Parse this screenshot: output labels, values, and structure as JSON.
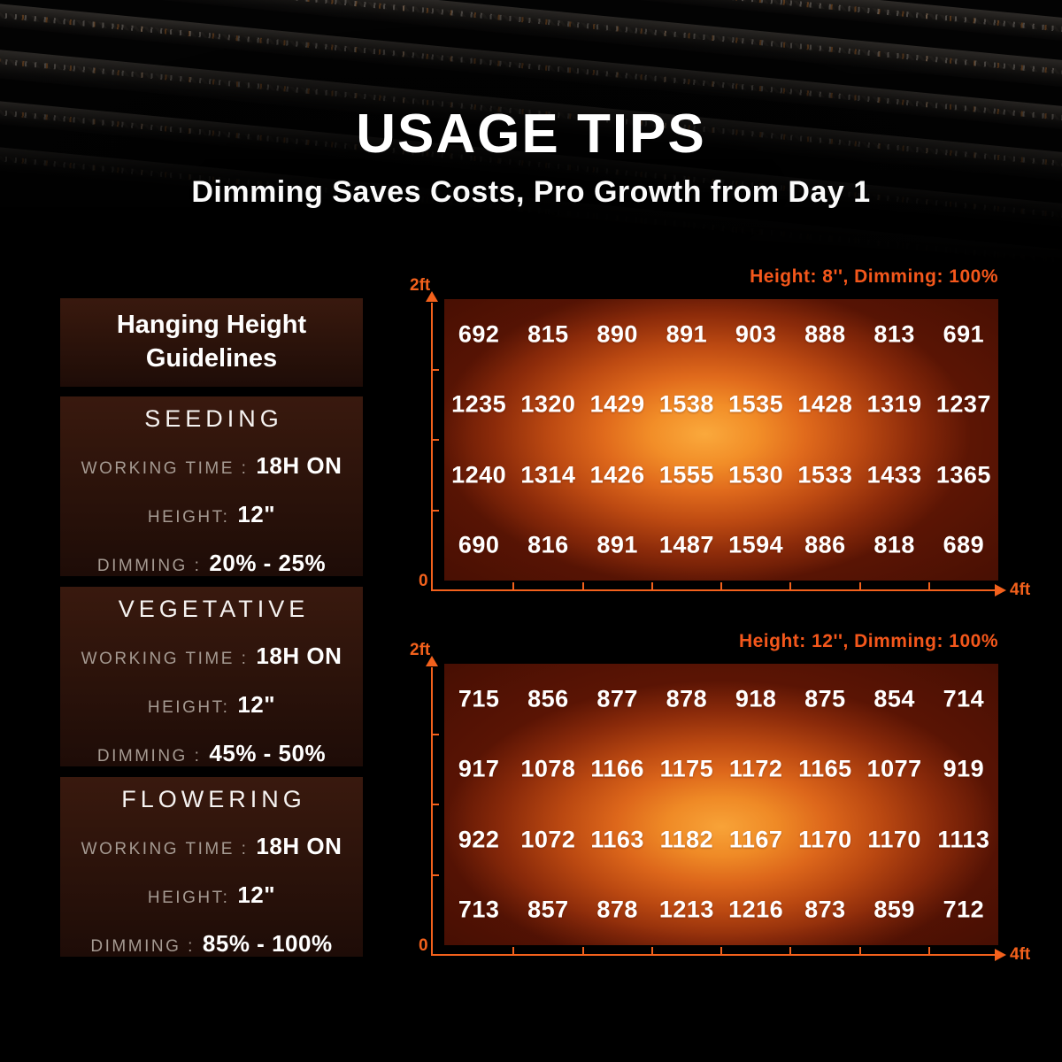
{
  "hero": {
    "title": "USAGE TIPS",
    "subtitle": "Dimming Saves Costs, Pro Growth from Day 1"
  },
  "guidelines": {
    "title": "Hanging Height Guidelines",
    "stages": [
      {
        "name": "SEEDING",
        "rows": [
          {
            "label": "WORKING TIME :",
            "value": "18H ON"
          },
          {
            "label": "HEIGHT:",
            "value": "12\""
          },
          {
            "label": "DIMMING :",
            "value": "20% - 25%"
          }
        ]
      },
      {
        "name": "VEGETATIVE",
        "rows": [
          {
            "label": "WORKING TIME :",
            "value": "18H ON"
          },
          {
            "label": "HEIGHT:",
            "value": "12\""
          },
          {
            "label": "DIMMING :",
            "value": "45% - 50%"
          }
        ]
      },
      {
        "name": "FLOWERING",
        "rows": [
          {
            "label": "WORKING TIME :",
            "value": "18H ON"
          },
          {
            "label": "HEIGHT:",
            "value": "12\""
          },
          {
            "label": "DIMMING :",
            "value": "85% - 100%"
          }
        ]
      }
    ]
  },
  "chart_data": [
    {
      "type": "heatmap",
      "title": "Height: 8'', Dimming: 100%",
      "axis_labels": {
        "y_max": "2ft",
        "origin": "0",
        "x_max": "4ft"
      },
      "x_range_ft": [
        0,
        4
      ],
      "y_range_ft": [
        0,
        2
      ],
      "grid_size": {
        "cols": 8,
        "rows": 4
      },
      "values": [
        [
          692,
          815,
          890,
          891,
          903,
          888,
          813,
          691
        ],
        [
          1235,
          1320,
          1429,
          1538,
          1535,
          1428,
          1319,
          1237
        ],
        [
          1240,
          1314,
          1426,
          1555,
          1530,
          1533,
          1433,
          1365
        ],
        [
          690,
          816,
          891,
          1487,
          1594,
          886,
          818,
          689
        ]
      ]
    },
    {
      "type": "heatmap",
      "title": "Height: 12'', Dimming: 100%",
      "axis_labels": {
        "y_max": "2ft",
        "origin": "0",
        "x_max": "4ft"
      },
      "x_range_ft": [
        0,
        4
      ],
      "y_range_ft": [
        0,
        2
      ],
      "grid_size": {
        "cols": 8,
        "rows": 4
      },
      "values": [
        [
          715,
          856,
          877,
          878,
          918,
          875,
          854,
          714
        ],
        [
          917,
          1078,
          1166,
          1175,
          1172,
          1165,
          1077,
          919
        ],
        [
          922,
          1072,
          1163,
          1182,
          1167,
          1170,
          1170,
          1113
        ],
        [
          713,
          857,
          878,
          1213,
          1216,
          873,
          859,
          712
        ]
      ]
    }
  ],
  "colors": {
    "accent_orange": "#f3611c",
    "heatmap_center": "#faa93c",
    "heatmap_edge": "#5c1504",
    "panel_background": "#2a120a",
    "label_gray": "#a59a92"
  }
}
